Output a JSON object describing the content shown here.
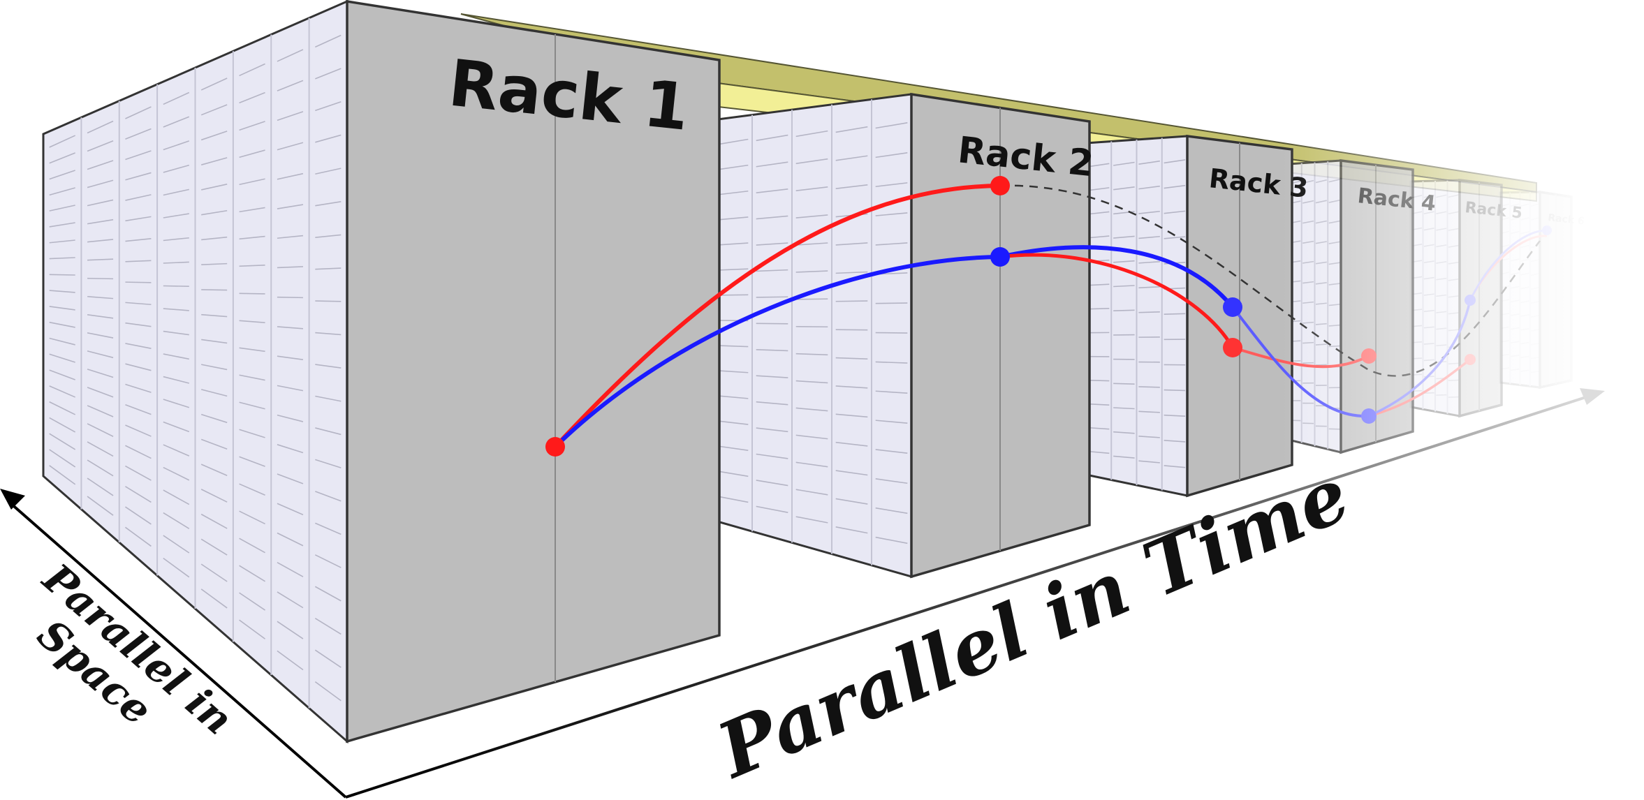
{
  "racks": [
    {
      "label": "Rack 1"
    },
    {
      "label": "Rack 2"
    },
    {
      "label": "Rack 3"
    },
    {
      "label": "Rack 4"
    },
    {
      "label": "Rack 5"
    },
    {
      "label": "Rack 6"
    }
  ],
  "axes": {
    "space_label_line1": "Parallel in",
    "space_label_line2": "Space",
    "time_label": "Parallel in Time"
  },
  "colors": {
    "trajectory_red": "#ff1a1a",
    "trajectory_blue": "#1a1aff",
    "trajectory_dashed": "#333333",
    "rack_front": "#bdbdbd",
    "rack_side": "#e8e8f4",
    "shelf": "#f2ef96"
  }
}
